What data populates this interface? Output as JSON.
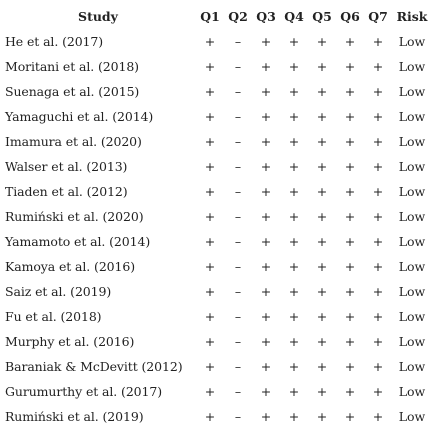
{
  "headers": [
    "Study",
    "Q1",
    "Q2",
    "Q3",
    "Q4",
    "Q5",
    "Q6",
    "Q7",
    "Risk"
  ],
  "rows": [
    {
      "study": "He et al. (2017)",
      "q": [
        "+",
        "–",
        "+",
        "+",
        "+",
        "+",
        "+"
      ],
      "risk": "Low"
    },
    {
      "study": "Moritani et al. (2018)",
      "q": [
        "+",
        "–",
        "+",
        "+",
        "+",
        "+",
        "+"
      ],
      "risk": "Low"
    },
    {
      "study": "Suenaga et al. (2015)",
      "q": [
        "+",
        "–",
        "+",
        "+",
        "+",
        "+",
        "+"
      ],
      "risk": "Low"
    },
    {
      "study": "Yamaguchi et al. (2014)",
      "q": [
        "+",
        "–",
        "+",
        "+",
        "+",
        "+",
        "+"
      ],
      "risk": "Low"
    },
    {
      "study": "Imamura et al. (2020)",
      "q": [
        "+",
        "–",
        "+",
        "+",
        "+",
        "+",
        "+"
      ],
      "risk": "Low"
    },
    {
      "study": "Walser et al. (2013)",
      "q": [
        "+",
        "–",
        "+",
        "+",
        "+",
        "+",
        "+"
      ],
      "risk": "Low"
    },
    {
      "study": "Tiaden et al. (2012)",
      "q": [
        "+",
        "–",
        "+",
        "+",
        "+",
        "+",
        "+"
      ],
      "risk": "Low"
    },
    {
      "study": "Rumiński et al. (2020)",
      "q": [
        "+",
        "–",
        "+",
        "+",
        "+",
        "+",
        "+"
      ],
      "risk": "Low"
    },
    {
      "study": "Yamamoto et al. (2014)",
      "q": [
        "+",
        "–",
        "+",
        "+",
        "+",
        "+",
        "+"
      ],
      "risk": "Low"
    },
    {
      "study": "Kamoya et al. (2016)",
      "q": [
        "+",
        "–",
        "+",
        "+",
        "+",
        "+",
        "+"
      ],
      "risk": "Low"
    },
    {
      "study": "Saiz et al. (2019)",
      "q": [
        "+",
        "–",
        "+",
        "+",
        "+",
        "+",
        "+"
      ],
      "risk": "Low"
    },
    {
      "study": "Fu et al. (2018)",
      "q": [
        "+",
        "–",
        "+",
        "+",
        "+",
        "+",
        "+"
      ],
      "risk": "Low"
    },
    {
      "study": "Murphy et al. (2016)",
      "q": [
        "+",
        "–",
        "+",
        "+",
        "+",
        "+",
        "+"
      ],
      "risk": "Low"
    },
    {
      "study": "Baraniak & McDevitt (2012)",
      "q": [
        "+",
        "–",
        "+",
        "+",
        "+",
        "+",
        "+"
      ],
      "risk": "Low"
    },
    {
      "study": "Gurumurthy et al. (2017)",
      "q": [
        "+",
        "–",
        "+",
        "+",
        "+",
        "+",
        "+"
      ],
      "risk": "Low"
    },
    {
      "study": "Rumiński et al. (2019)",
      "q": [
        "+",
        "–",
        "+",
        "+",
        "+",
        "+",
        "+"
      ],
      "risk": "Low"
    }
  ]
}
